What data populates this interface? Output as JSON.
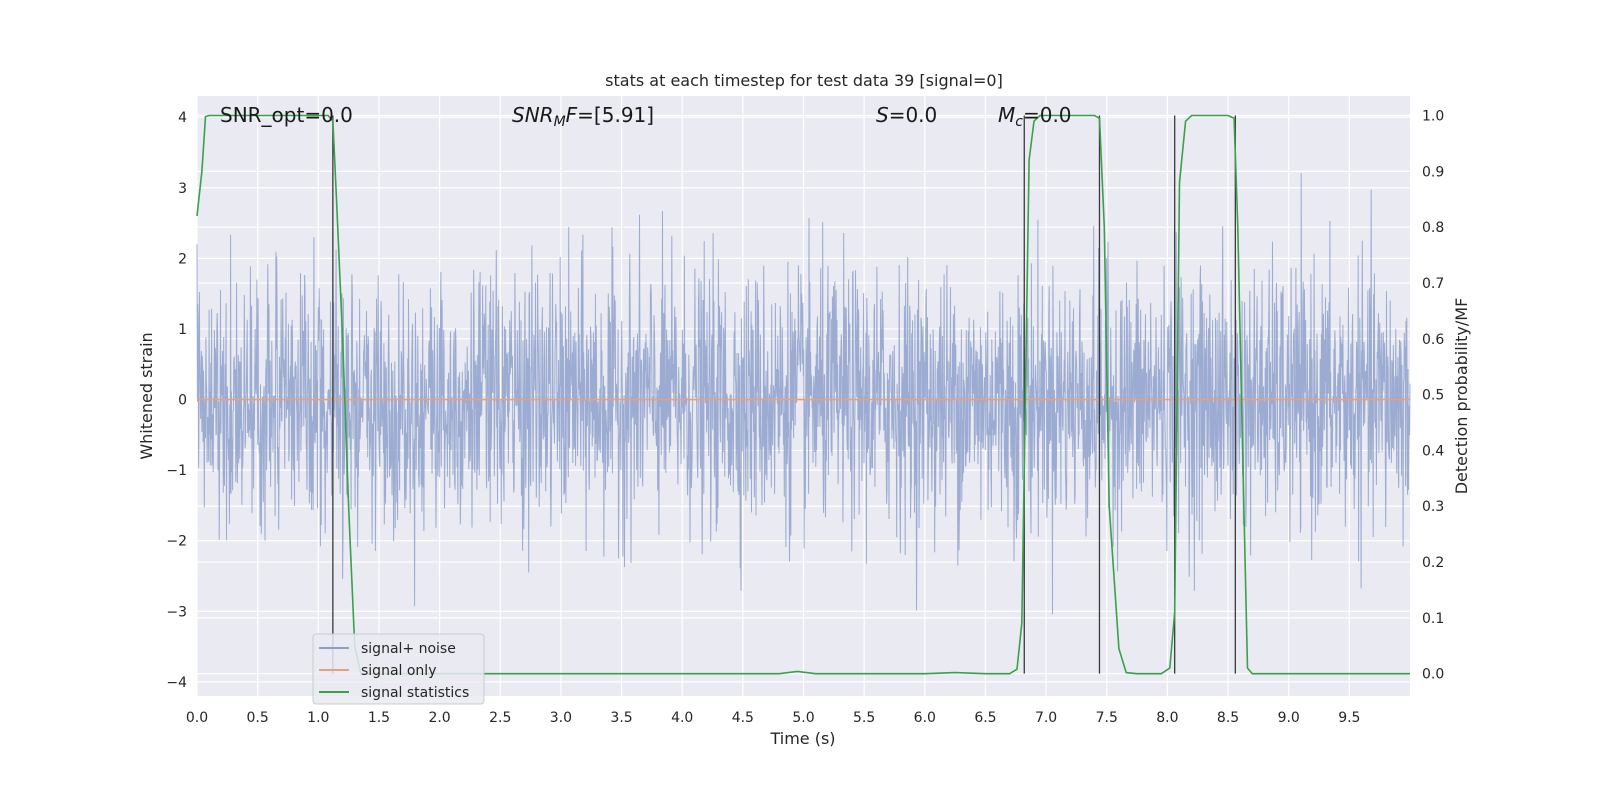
{
  "chart_data": {
    "type": "line",
    "title": "stats at each timestep for test data 39 [signal=0]",
    "xlabel": "Time (s)",
    "ylabel": "Whitened strain",
    "y2label": "Detection probability/MF",
    "xlim": [
      0.0,
      10.0
    ],
    "ylim": [
      -4.2,
      4.3
    ],
    "y2lim": [
      -0.04,
      1.035
    ],
    "xticks": [
      "0.0",
      "0.5",
      "1.0",
      "1.5",
      "2.0",
      "2.5",
      "3.0",
      "3.5",
      "4.0",
      "4.5",
      "5.0",
      "5.5",
      "6.0",
      "6.5",
      "7.0",
      "7.5",
      "8.0",
      "8.5",
      "9.0",
      "9.5"
    ],
    "yticks": [
      "4",
      "3",
      "2",
      "1",
      "0",
      "−1",
      "−2",
      "−3",
      "−4"
    ],
    "y2ticks": [
      "1.0",
      "0.9",
      "0.8",
      "0.7",
      "0.6",
      "0.5",
      "0.4",
      "0.3",
      "0.2",
      "0.1",
      "0.0"
    ],
    "annotations": [
      {
        "label": "SNR_opt=0.0",
        "x": 0.2
      },
      {
        "label": "SNR_MF=[5.91]",
        "x": 2.6
      },
      {
        "label": "S=0.0",
        "x": 5.6
      },
      {
        "label": "M_c=0.0",
        "x": 6.6
      }
    ],
    "series": [
      {
        "name": "signal+ noise",
        "color": "#8da0cb",
        "kind": "noise",
        "approx_band": [
          -1.6,
          1.6
        ],
        "approx_peak": 4.0
      },
      {
        "name": "signal only",
        "color": "#e8a07e",
        "kind": "constant",
        "value": 0.0
      },
      {
        "name": "signal statistics",
        "color": "#3aa04a",
        "axis": "right",
        "x": [
          0.0,
          0.04,
          0.07,
          0.1,
          0.2,
          0.5,
          0.8,
          1.0,
          1.08,
          1.12,
          1.15,
          1.2,
          1.25,
          1.3,
          1.35,
          1.4,
          1.5,
          2.0,
          3.0,
          4.0,
          4.5,
          4.8,
          4.95,
          5.1,
          5.5,
          6.0,
          6.25,
          6.5,
          6.7,
          6.76,
          6.8,
          6.86,
          6.9,
          6.95,
          7.0,
          7.2,
          7.4,
          7.44,
          7.48,
          7.52,
          7.6,
          7.66,
          7.75,
          7.85,
          7.95,
          8.02,
          8.06,
          8.1,
          8.15,
          8.2,
          8.3,
          8.4,
          8.5,
          8.55,
          8.58,
          8.62,
          8.66,
          8.7,
          8.75,
          8.8,
          9.0,
          9.5,
          10.0
        ],
        "y": [
          0.82,
          0.9,
          0.998,
          1.0,
          1.0,
          1.0,
          1.0,
          1.0,
          1.0,
          0.99,
          0.85,
          0.6,
          0.3,
          0.05,
          0.0,
          0.0,
          0.0,
          0.0,
          0.0,
          0.0,
          0.0,
          0.0,
          0.004,
          0.0,
          0.0,
          0.0,
          0.002,
          0.0,
          0.0,
          0.008,
          0.09,
          0.92,
          0.99,
          1.0,
          1.0,
          1.0,
          1.0,
          0.995,
          0.8,
          0.3,
          0.045,
          0.002,
          0.0,
          0.0,
          0.0,
          0.01,
          0.11,
          0.88,
          0.99,
          1.0,
          1.0,
          1.0,
          1.0,
          0.995,
          0.8,
          0.4,
          0.01,
          0.0,
          0.0,
          0.0,
          0.0,
          0.0,
          0.0
        ]
      },
      {
        "name": "",
        "color": "#3a3a3a",
        "kind": "vlines",
        "x": [
          1.12,
          6.82,
          7.44,
          8.06,
          8.56
        ]
      }
    ],
    "legend": {
      "position": "lower-left",
      "entries": [
        "signal+ noise",
        "signal only",
        "signal statistics"
      ]
    },
    "grid": true
  }
}
